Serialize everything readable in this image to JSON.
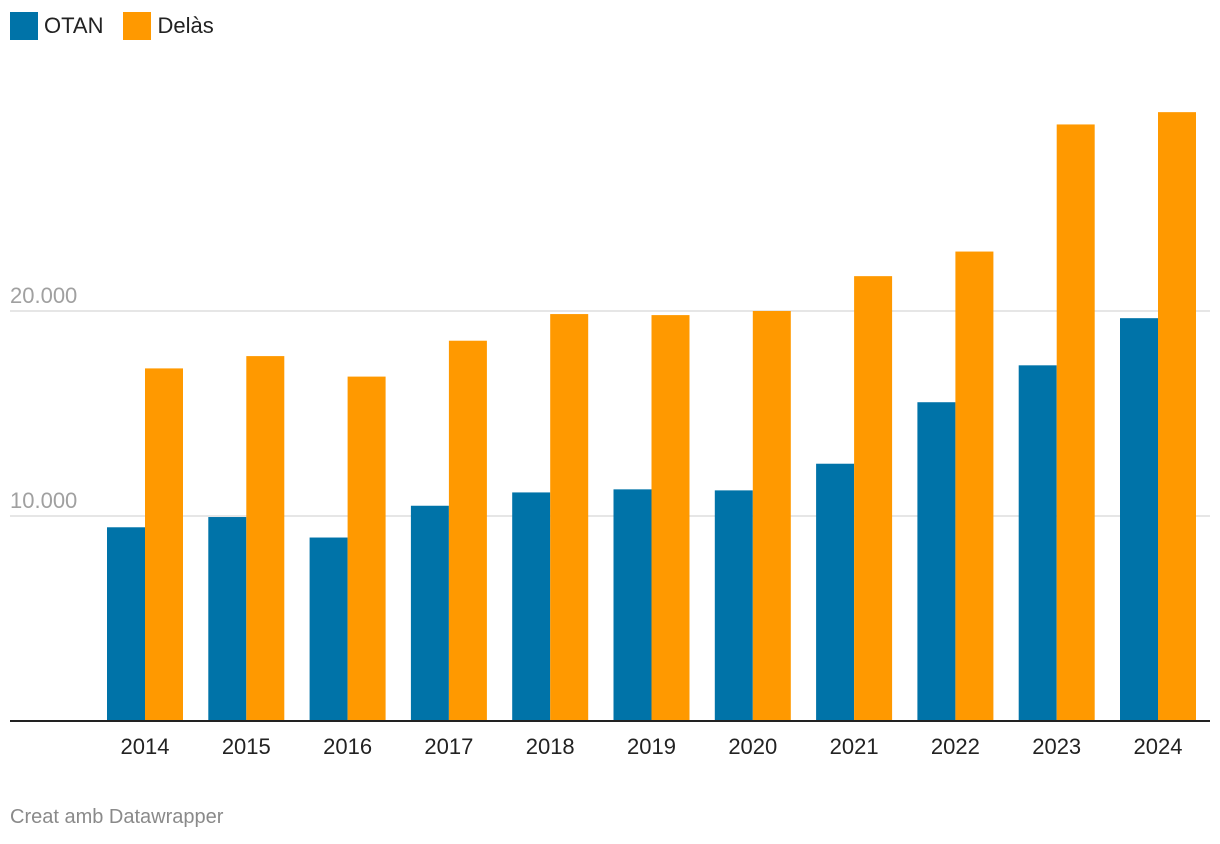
{
  "chart_data": {
    "type": "bar",
    "categories": [
      "2014",
      "2015",
      "2016",
      "2017",
      "2018",
      "2019",
      "2020",
      "2021",
      "2022",
      "2023",
      "2024"
    ],
    "series": [
      {
        "name": "OTAN",
        "color": "#0073a8",
        "values": [
          9450,
          9950,
          8950,
          10500,
          11150,
          11300,
          11250,
          12550,
          15550,
          17350,
          19650
        ]
      },
      {
        "name": "Delàs",
        "color": "#ff9900",
        "values": [
          17200,
          17800,
          16800,
          18550,
          19850,
          19800,
          20000,
          21700,
          22900,
          29100,
          29700
        ]
      }
    ],
    "y_ticks": [
      {
        "value": 10000,
        "label": "10.000"
      },
      {
        "value": 20000,
        "label": "20.000"
      }
    ],
    "ylim": [
      0,
      32000
    ],
    "grid": true,
    "legend": "top-left",
    "title": "",
    "xlabel": "",
    "ylabel": ""
  },
  "footer": {
    "credit": "Creat amb Datawrapper"
  }
}
